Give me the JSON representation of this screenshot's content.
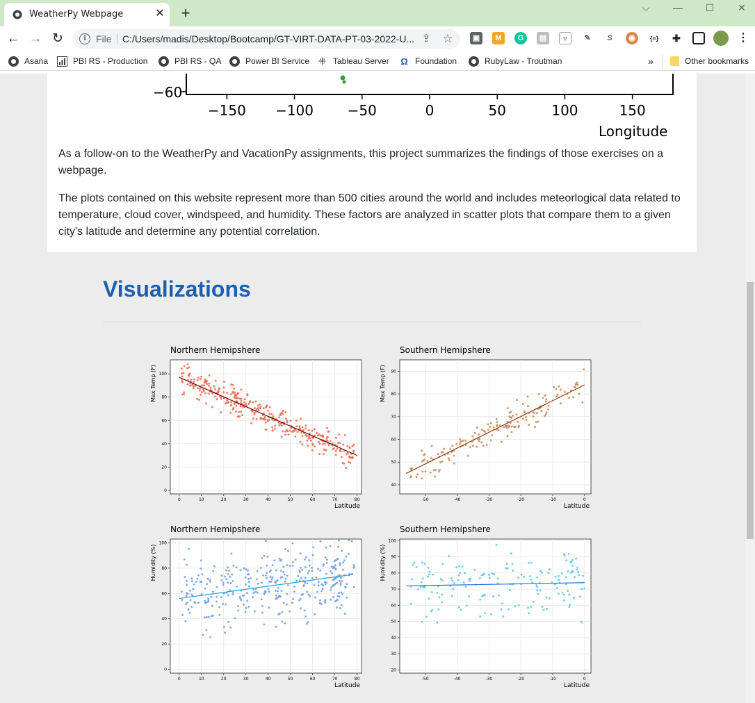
{
  "browser": {
    "tab_title": "WeatherPy Webpage",
    "tab_close": "✕",
    "new_tab": "+",
    "url_scheme_label": "File",
    "url": "C:/Users/madis/Desktop/Bootcamp/GT-VIRT-DATA-PT-03-2022-U...",
    "window_controls": [
      "minimize",
      "maximize",
      "close"
    ],
    "nav_icons": [
      "back-arrow-icon",
      "forward-arrow-icon",
      "reload-icon"
    ],
    "extension_icons": [
      "briefcase-icon",
      "mosaic-icon",
      "grammarly-icon",
      "gray-ext-icon",
      "pocket-icon",
      "brush-icon",
      "s-icon",
      "owl-icon",
      "json-icon",
      "puzzle-icon",
      "sidepanel-icon",
      "profile-avatar-icon",
      "menu-dots-icon"
    ],
    "bookmarks": [
      {
        "label": "Asana",
        "icon": "globe-icon"
      },
      {
        "label": "PBI RS - Production",
        "icon": "bar-chart-icon"
      },
      {
        "label": "PBI RS - QA",
        "icon": "globe-icon"
      },
      {
        "label": "Power BI Service",
        "icon": "globe-icon"
      },
      {
        "label": "Tableau Server",
        "icon": "tableau-icon"
      },
      {
        "label": "Foundation",
        "icon": "foundation-icon"
      },
      {
        "label": "RubyLaw - Troutman",
        "icon": "globe-icon"
      }
    ],
    "bookmarks_overflow": "»",
    "other_bookmarks": "Other bookmarks"
  },
  "map_fragment": {
    "y_tick": "−60",
    "x_ticks": [
      "−150",
      "−100",
      "−50",
      "0",
      "50",
      "100",
      "150"
    ],
    "x_tick_values": [
      -150,
      -100,
      -50,
      0,
      50,
      100,
      150
    ],
    "xlabel": "Longitude"
  },
  "intro": {
    "p1": "As a follow-on to the WeatherPy and VacationPy assignments, this project summarizes the findings of those exercises on a webpage.",
    "p2": "The plots contained on this website represent more than 500 cities around the world and includes meteorlogical data related to temperature, cloud cover, windspeed, and humidity. These factors are analyzed in scatter plots that compare them to a given city's latitude and determine any potential correlation."
  },
  "visualizations": {
    "heading": "Visualizations"
  },
  "chart_data": [
    {
      "type": "scatter",
      "title": "Northern Hemipshere",
      "xlabel": "Latitude",
      "ylabel": "Max Temp (F)",
      "xlim": [
        -4,
        82
      ],
      "ylim": [
        -3,
        112
      ],
      "xticks": [
        0,
        10,
        20,
        30,
        40,
        50,
        60,
        70,
        80
      ],
      "yticks": [
        0,
        20,
        40,
        60,
        80,
        100
      ],
      "grid": true,
      "point_color": "#ee6a50",
      "line_color": "#5a0a0a",
      "regression": {
        "x": [
          0,
          80
        ],
        "y": [
          97,
          30
        ]
      },
      "points": {
        "x_range": [
          1,
          79
        ],
        "seed": 11,
        "count": 360,
        "slope": -0.84,
        "intercept": 97,
        "noise": 10
      }
    },
    {
      "type": "scatter",
      "title": "Southern Hemipshere",
      "xlabel": "Latitude",
      "ylabel": "Max Temp (F)",
      "xlim": [
        -58,
        2
      ],
      "ylim": [
        36,
        95
      ],
      "xticks": [
        -50,
        -40,
        -30,
        -20,
        -10,
        0
      ],
      "yticks": [
        40,
        50,
        60,
        70,
        80,
        90
      ],
      "grid": true,
      "point_color": "#c8875a",
      "line_color": "#8b3d10",
      "regression": {
        "x": [
          -56,
          0
        ],
        "y": [
          45,
          84
        ]
      },
      "points": {
        "x_range": [
          -55,
          0
        ],
        "seed": 23,
        "count": 170,
        "slope": 0.7,
        "intercept": 84,
        "noise": 6
      }
    },
    {
      "type": "scatter",
      "title": "Northern Hemipshere",
      "xlabel": "Latitude",
      "ylabel": "Humidity (%)",
      "xlim": [
        -4,
        82
      ],
      "ylim": [
        -3,
        103
      ],
      "xticks": [
        0,
        10,
        20,
        30,
        40,
        50,
        60,
        70,
        80
      ],
      "yticks": [
        0,
        20,
        40,
        60,
        80,
        100
      ],
      "grid": true,
      "point_color": "#6f9de0",
      "line_color": "#1aa3e8",
      "regression": {
        "x": [
          0,
          78
        ],
        "y": [
          56,
          75
        ]
      },
      "points": {
        "x_range": [
          1,
          79
        ],
        "seed": 37,
        "count": 360,
        "slope": 0.24,
        "intercept": 56,
        "noise": 24
      }
    },
    {
      "type": "scatter",
      "title": "Southern Hemipshere",
      "xlabel": "Latitude",
      "ylabel": "Humidity (%)",
      "xlim": [
        -58,
        2
      ],
      "ylim": [
        18,
        101
      ],
      "xticks": [
        -50,
        -40,
        -30,
        -20,
        -10,
        0
      ],
      "yticks": [
        20,
        30,
        40,
        50,
        60,
        70,
        80,
        90,
        100
      ],
      "grid": true,
      "point_color": "#5ec3ee",
      "line_color": "#2a6fd6",
      "regression": {
        "x": [
          -56,
          0
        ],
        "y": [
          72,
          74
        ]
      },
      "points": {
        "x_range": [
          -55,
          0
        ],
        "seed": 51,
        "count": 170,
        "slope": 0.04,
        "intercept": 74,
        "noise": 17
      }
    }
  ]
}
